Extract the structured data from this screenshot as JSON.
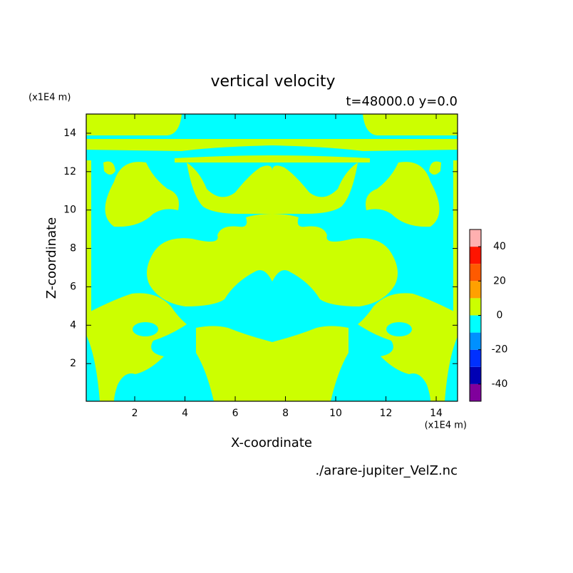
{
  "chart_data": {
    "type": "contour",
    "title": "vertical velocity",
    "subtitle": "t=48000.0 y=0.0",
    "x_label": "X-coordinate",
    "y_label": "Z-coordinate",
    "x_unit": "(x1E4 m)",
    "y_unit": "(x1E4 m)",
    "source": "./arare-jupiter_VelZ.nc",
    "xlim": [
      0.07,
      14.85
    ],
    "ylim": [
      0.04,
      15.0
    ],
    "xticks": [
      2,
      4,
      6,
      8,
      10,
      12,
      14
    ],
    "yticks": [
      2,
      4,
      6,
      8,
      10,
      12,
      14
    ],
    "colorbar": {
      "levels": [
        -50,
        -40,
        -30,
        -20,
        -10,
        0,
        10,
        20,
        30,
        40,
        50
      ],
      "colors": [
        "#80009c",
        "#0000b4",
        "#0030ff",
        "#0090ff",
        "#00ffff",
        "#ccff00",
        "#ffa000",
        "#ff5a00",
        "#ff1400",
        "#ffb0b0"
      ],
      "ticks": [
        -40,
        -20,
        0,
        20,
        40
      ]
    }
  }
}
